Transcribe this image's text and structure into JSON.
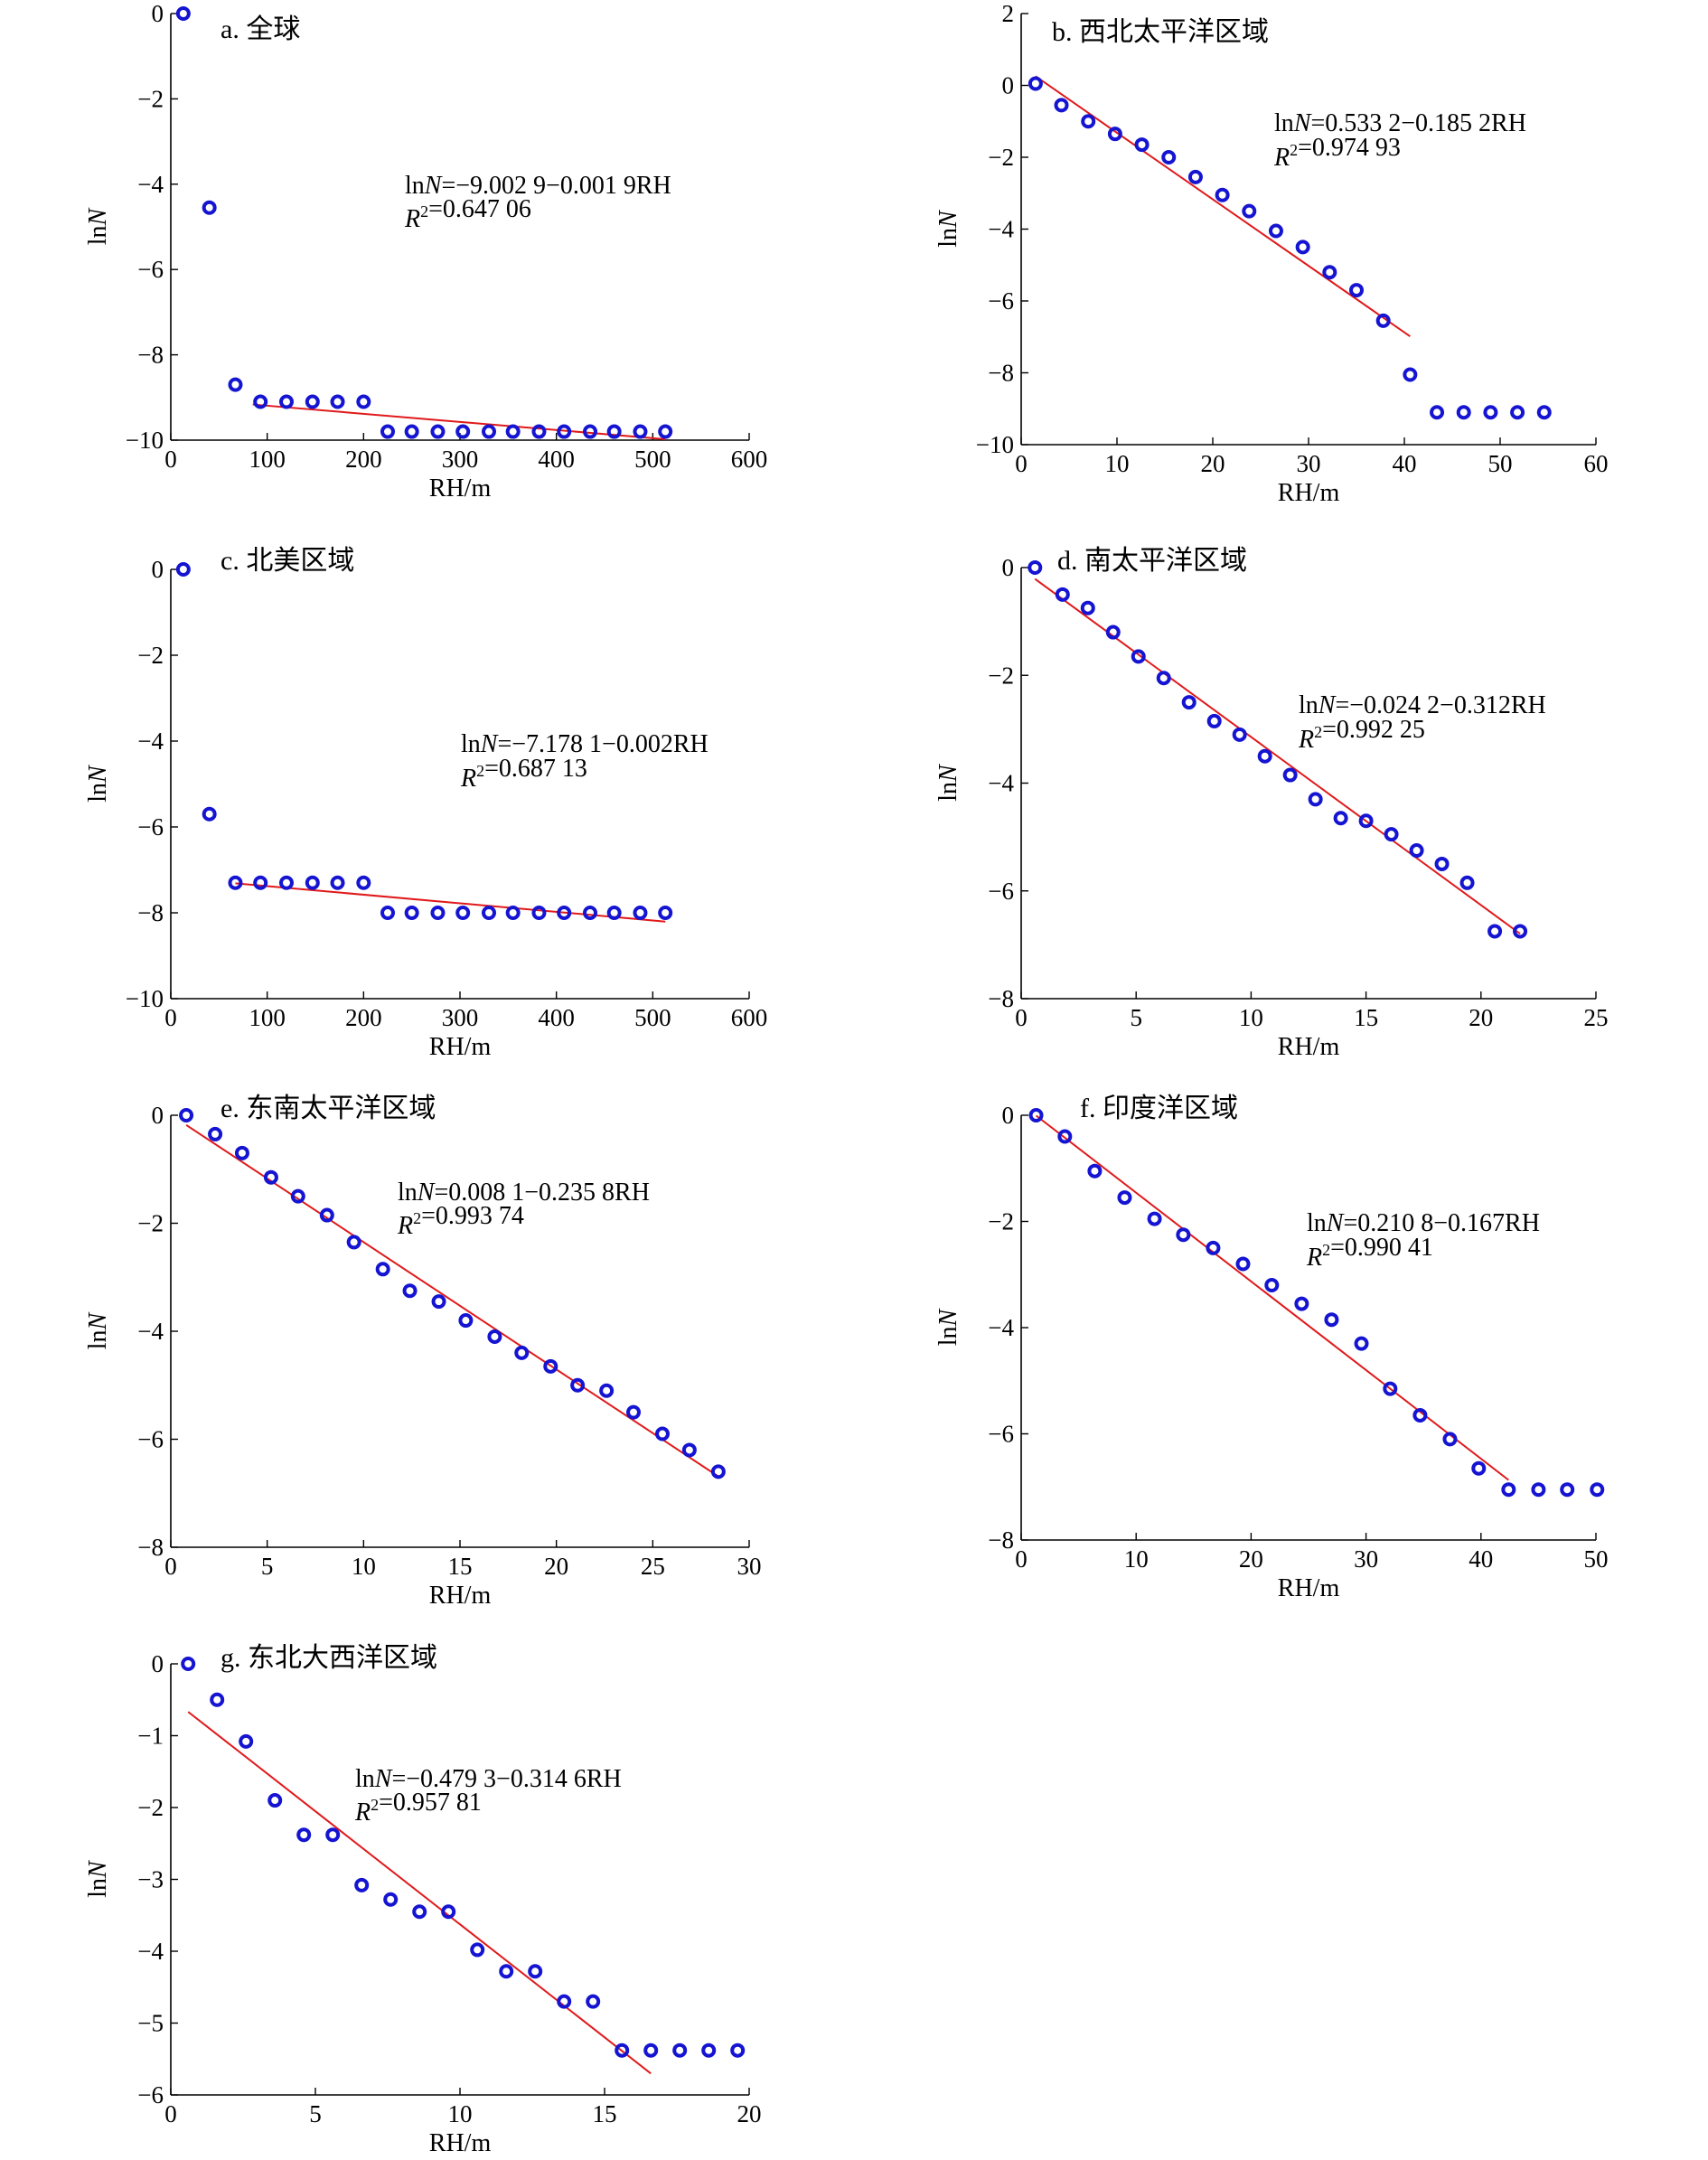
{
  "panels": [
    {
      "id": "a",
      "title": "a. 全球",
      "xlabel": "RH/m",
      "ylabel": "lnN",
      "equation": "lnN=−9.002 9−0.001 9RH",
      "r2": "R²=0.647 06",
      "chart_data": {
        "type": "scatter",
        "xlim": [
          0,
          600
        ],
        "ylim": [
          -10,
          0
        ],
        "xticks": [
          0,
          100,
          200,
          300,
          400,
          500,
          600
        ],
        "yticks": [
          -10,
          -8,
          -6,
          -4,
          -2,
          0
        ],
        "points": [
          [
            13,
            0
          ],
          [
            40,
            -4.55
          ],
          [
            67,
            -8.7
          ],
          [
            93,
            -9.1
          ],
          [
            120,
            -9.1
          ],
          [
            147,
            -9.1
          ],
          [
            173,
            -9.1
          ],
          [
            200,
            -9.1
          ],
          [
            225,
            -9.8
          ],
          [
            250,
            -9.8
          ],
          [
            277,
            -9.8
          ],
          [
            303,
            -9.8
          ],
          [
            330,
            -9.8
          ],
          [
            355,
            -9.8
          ],
          [
            382,
            -9.8
          ],
          [
            408,
            -9.8
          ],
          [
            435,
            -9.8
          ],
          [
            460,
            -9.8
          ],
          [
            487,
            -9.8
          ],
          [
            513,
            -9.8
          ]
        ],
        "fit": {
          "intercept": -9.0029,
          "slope": -0.0019,
          "x_range": [
            85,
            513
          ]
        }
      }
    },
    {
      "id": "b",
      "title": "b. 西北太平洋区域",
      "xlabel": "RH/m",
      "ylabel": "lnN",
      "equation": "lnN=0.533 2−0.185 2RH",
      "r2": "R²=0.974 93",
      "chart_data": {
        "type": "scatter",
        "xlim": [
          0,
          60
        ],
        "ylim": [
          -10,
          2
        ],
        "xticks": [
          0,
          10,
          20,
          30,
          40,
          50,
          60
        ],
        "yticks": [
          -10,
          -8,
          -6,
          -4,
          -2,
          0,
          2
        ],
        "points": [
          [
            1.5,
            0.05
          ],
          [
            4.2,
            -0.55
          ],
          [
            7,
            -1
          ],
          [
            9.8,
            -1.35
          ],
          [
            12.6,
            -1.65
          ],
          [
            15.4,
            -2
          ],
          [
            18.2,
            -2.55
          ],
          [
            21,
            -3.05
          ],
          [
            23.8,
            -3.5
          ],
          [
            26.6,
            -4.05
          ],
          [
            29.4,
            -4.5
          ],
          [
            32.2,
            -5.2
          ],
          [
            35,
            -5.7
          ],
          [
            37.8,
            -6.55
          ],
          [
            40.6,
            -8.05
          ],
          [
            43.4,
            -9.1
          ],
          [
            46.2,
            -9.1
          ],
          [
            49,
            -9.1
          ],
          [
            51.8,
            -9.1
          ],
          [
            54.6,
            -9.1
          ]
        ],
        "fit": {
          "intercept": 0.5332,
          "slope": -0.1852,
          "x_range": [
            1.5,
            40.6
          ]
        }
      }
    },
    {
      "id": "c",
      "title": "c. 北美区域",
      "xlabel": "RH/m",
      "ylabel": "lnN",
      "equation": "lnN=−7.178 1−0.002RH",
      "r2": "R²=0.687 13",
      "chart_data": {
        "type": "scatter",
        "xlim": [
          0,
          600
        ],
        "ylim": [
          -10,
          0
        ],
        "xticks": [
          0,
          100,
          200,
          300,
          400,
          500,
          600
        ],
        "yticks": [
          -10,
          -8,
          -6,
          -4,
          -2,
          0
        ],
        "points": [
          [
            13,
            0
          ],
          [
            40,
            -5.7
          ],
          [
            67,
            -7.3
          ],
          [
            93,
            -7.3
          ],
          [
            120,
            -7.3
          ],
          [
            147,
            -7.3
          ],
          [
            173,
            -7.3
          ],
          [
            200,
            -7.3
          ],
          [
            225,
            -8
          ],
          [
            250,
            -8
          ],
          [
            277,
            -8
          ],
          [
            303,
            -8
          ],
          [
            330,
            -8
          ],
          [
            355,
            -8
          ],
          [
            382,
            -8
          ],
          [
            408,
            -8
          ],
          [
            435,
            -8
          ],
          [
            460,
            -8
          ],
          [
            487,
            -8
          ],
          [
            513,
            -8
          ]
        ],
        "fit": {
          "intercept": -7.1781,
          "slope": -0.002,
          "x_range": [
            67,
            513
          ]
        }
      }
    },
    {
      "id": "d",
      "title": "d. 南太平洋区域",
      "xlabel": "RH/m",
      "ylabel": "lnN",
      "equation": "lnN=−0.024 2−0.312RH",
      "r2": "R²=0.992 25",
      "chart_data": {
        "type": "scatter",
        "xlim": [
          0,
          25
        ],
        "ylim": [
          -8,
          0
        ],
        "xticks": [
          0,
          5,
          10,
          15,
          20,
          25
        ],
        "yticks": [
          -8,
          -6,
          -4,
          -2,
          0
        ],
        "points": [
          [
            0.6,
            0
          ],
          [
            1.8,
            -0.5
          ],
          [
            2.9,
            -0.75
          ],
          [
            4,
            -1.2
          ],
          [
            5.1,
            -1.65
          ],
          [
            6.2,
            -2.05
          ],
          [
            7.3,
            -2.5
          ],
          [
            8.4,
            -2.85
          ],
          [
            9.5,
            -3.1
          ],
          [
            10.6,
            -3.5
          ],
          [
            11.7,
            -3.85
          ],
          [
            12.8,
            -4.3
          ],
          [
            13.9,
            -4.65
          ],
          [
            15,
            -4.7
          ],
          [
            16.1,
            -4.95
          ],
          [
            17.2,
            -5.25
          ],
          [
            18.3,
            -5.5
          ],
          [
            19.4,
            -5.85
          ],
          [
            20.6,
            -6.75
          ],
          [
            21.7,
            -6.75
          ]
        ],
        "fit": {
          "intercept": -0.0242,
          "slope": -0.312,
          "x_range": [
            0.6,
            21.7
          ]
        }
      }
    },
    {
      "id": "e",
      "title": "e. 东南太平洋区域",
      "xlabel": "RH/m",
      "ylabel": "lnN",
      "equation": "lnN=0.008 1−0.235 8RH",
      "r2": "R²=0.993 74",
      "chart_data": {
        "type": "scatter",
        "xlim": [
          0,
          30
        ],
        "ylim": [
          -8,
          0
        ],
        "xticks": [
          0,
          5,
          10,
          15,
          20,
          25,
          30
        ],
        "yticks": [
          -8,
          -6,
          -4,
          -2,
          0
        ],
        "points": [
          [
            0.8,
            0
          ],
          [
            2.3,
            -0.35
          ],
          [
            3.7,
            -0.7
          ],
          [
            5.2,
            -1.15
          ],
          [
            6.6,
            -1.5
          ],
          [
            8.1,
            -1.85
          ],
          [
            9.5,
            -2.35
          ],
          [
            11,
            -2.85
          ],
          [
            12.4,
            -3.25
          ],
          [
            13.9,
            -3.45
          ],
          [
            15.3,
            -3.8
          ],
          [
            16.8,
            -4.1
          ],
          [
            18.2,
            -4.4
          ],
          [
            19.7,
            -4.65
          ],
          [
            21.1,
            -5
          ],
          [
            22.6,
            -5.1
          ],
          [
            24,
            -5.5
          ],
          [
            25.5,
            -5.9
          ],
          [
            26.9,
            -6.2
          ],
          [
            28.4,
            -6.6
          ]
        ],
        "fit": {
          "intercept": 0.0081,
          "slope": -0.2358,
          "x_range": [
            0.8,
            28.4
          ]
        }
      }
    },
    {
      "id": "f",
      "title": "f. 印度洋区域",
      "xlabel": "RH/m",
      "ylabel": "lnN",
      "equation": "lnN=0.210 8−0.167RH",
      "r2": "R²=0.990 41",
      "chart_data": {
        "type": "scatter",
        "xlim": [
          0,
          50
        ],
        "ylim": [
          -8,
          0
        ],
        "xticks": [
          0,
          10,
          20,
          30,
          40,
          50
        ],
        "yticks": [
          -8,
          -6,
          -4,
          -2,
          0
        ],
        "points": [
          [
            1.3,
            0
          ],
          [
            3.8,
            -0.4
          ],
          [
            6.4,
            -1.05
          ],
          [
            9,
            -1.55
          ],
          [
            11.6,
            -1.95
          ],
          [
            14.1,
            -2.25
          ],
          [
            16.7,
            -2.5
          ],
          [
            19.3,
            -2.8
          ],
          [
            21.8,
            -3.2
          ],
          [
            24.4,
            -3.55
          ],
          [
            27,
            -3.85
          ],
          [
            29.6,
            -4.3
          ],
          [
            32.1,
            -5.15
          ],
          [
            34.7,
            -5.65
          ],
          [
            37.3,
            -6.1
          ],
          [
            39.8,
            -6.65
          ],
          [
            42.4,
            -7.05
          ],
          [
            45,
            -7.05
          ],
          [
            47.5,
            -7.05
          ],
          [
            50.1,
            -7.05
          ]
        ],
        "fit": {
          "intercept": 0.2108,
          "slope": -0.167,
          "x_range": [
            1.3,
            42.4
          ]
        }
      }
    },
    {
      "id": "g",
      "title": "g. 东北大西洋区域",
      "xlabel": "RH/m",
      "ylabel": "lnN",
      "equation": "lnN=−0.479 3−0.314 6RH",
      "r2": "R²=0.957 81",
      "chart_data": {
        "type": "scatter",
        "xlim": [
          0,
          20
        ],
        "ylim": [
          -6,
          0
        ],
        "xticks": [
          0,
          5,
          10,
          15,
          20
        ],
        "yticks": [
          -6,
          -5,
          -4,
          -3,
          -2,
          -1,
          0
        ],
        "points": [
          [
            0.6,
            0
          ],
          [
            1.6,
            -0.5
          ],
          [
            2.6,
            -1.08
          ],
          [
            3.6,
            -1.9
          ],
          [
            4.6,
            -2.38
          ],
          [
            5.6,
            -2.38
          ],
          [
            6.6,
            -3.08
          ],
          [
            7.6,
            -3.28
          ],
          [
            8.6,
            -3.45
          ],
          [
            9.6,
            -3.45
          ],
          [
            10.6,
            -3.98
          ],
          [
            11.6,
            -4.28
          ],
          [
            12.6,
            -4.28
          ],
          [
            13.6,
            -4.7
          ],
          [
            14.6,
            -4.7
          ],
          [
            15.6,
            -5.38
          ],
          [
            16.6,
            -5.38
          ],
          [
            17.6,
            -5.38
          ],
          [
            18.6,
            -5.38
          ],
          [
            19.6,
            -5.38
          ]
        ],
        "fit": {
          "intercept": -0.4793,
          "slope": -0.3146,
          "x_range": [
            0.6,
            16.6
          ]
        }
      }
    }
  ]
}
